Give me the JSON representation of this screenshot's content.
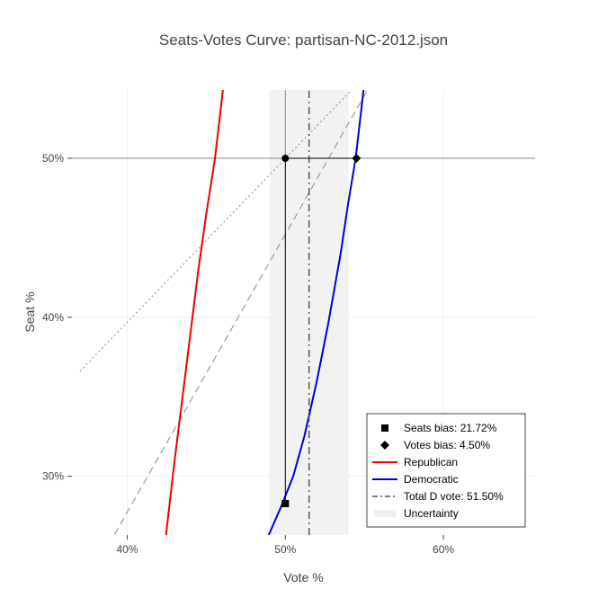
{
  "chart_data": {
    "type": "line",
    "title": "Seats-Votes Curve: partisan-NC-2012.json",
    "xlabel": "Vote %",
    "ylabel": "Seat %",
    "xlim": [
      0.365,
      0.658
    ],
    "ylim": [
      0.263,
      0.543
    ],
    "xticks": [
      {
        "value": 0.4,
        "label": "40%"
      },
      {
        "value": 0.5,
        "label": "50%"
      },
      {
        "value": 0.6,
        "label": "60%"
      }
    ],
    "yticks": [
      {
        "value": 0.3,
        "label": "30%"
      },
      {
        "value": 0.4,
        "label": "40%"
      },
      {
        "value": 0.5,
        "label": "50%"
      }
    ],
    "grid": true,
    "legend_position": "bottom-right",
    "uncertainty_band": [
      0.49,
      0.54
    ],
    "series": [
      {
        "name": "Republican",
        "color": "#ee0000",
        "style": "solid",
        "x": [
          0.4245,
          0.43,
          0.435,
          0.44,
          0.445,
          0.45,
          0.4555,
          0.4605
        ],
        "y": [
          0.263,
          0.31,
          0.35,
          0.39,
          0.43,
          0.465,
          0.5,
          0.543
        ]
      },
      {
        "name": "Democratic",
        "color": "#0000dd",
        "style": "solid",
        "x": [
          0.4895,
          0.497,
          0.505,
          0.512,
          0.52,
          0.527,
          0.535,
          0.5395,
          0.5445,
          0.5495
        ],
        "y": [
          0.263,
          0.28,
          0.3,
          0.325,
          0.36,
          0.395,
          0.44,
          0.47,
          0.5,
          0.543
        ]
      },
      {
        "name": "Total D vote: 51.50%",
        "color": "#555555",
        "style": "dashdot",
        "x": [
          0.515,
          0.515
        ],
        "y": [
          0.263,
          0.543
        ]
      }
    ],
    "reference_lines": [
      {
        "color": "#888888",
        "style": "dash",
        "x": [
          0.37,
          0.552
        ],
        "y": [
          0.225,
          0.543
        ]
      },
      {
        "color": "#888888",
        "style": "dot",
        "x": [
          0.37,
          0.542
        ],
        "y": [
          0.366,
          0.543
        ]
      },
      {
        "color": "#888888",
        "style": "solid",
        "x": [
          0.365,
          0.658
        ],
        "y": [
          0.5,
          0.5
        ]
      },
      {
        "color": "#888888",
        "style": "solid",
        "x": [
          0.5,
          0.5
        ],
        "y": [
          0.5,
          0.543
        ]
      }
    ],
    "points": [
      {
        "name": "Seats bias: 21.72%",
        "marker": "square",
        "x": 0.5,
        "y": 0.2828
      },
      {
        "name": "Votes bias: 4.50%",
        "marker": "diamond",
        "x": 0.545,
        "y": 0.5
      },
      {
        "marker": "circle",
        "x": 0.5,
        "y": 0.5
      }
    ],
    "bias_segments": [
      {
        "x": [
          0.5,
          0.5
        ],
        "y": [
          0.2828,
          0.5
        ]
      },
      {
        "x": [
          0.5,
          0.545
        ],
        "y": [
          0.5,
          0.5
        ]
      }
    ],
    "legend": [
      {
        "label": "Seats bias: 21.72%",
        "kind": "square",
        "color": "#000000"
      },
      {
        "label": "Votes bias: 4.50%",
        "kind": "diamond",
        "color": "#000000"
      },
      {
        "label": "Republican",
        "kind": "line",
        "color": "#ee0000"
      },
      {
        "label": "Democratic",
        "kind": "line",
        "color": "#0000dd"
      },
      {
        "label": "Total D vote: 51.50%",
        "kind": "dashdot",
        "color": "#555555"
      },
      {
        "label": "Uncertainty",
        "kind": "band",
        "color": "#f0f0f0"
      }
    ]
  }
}
